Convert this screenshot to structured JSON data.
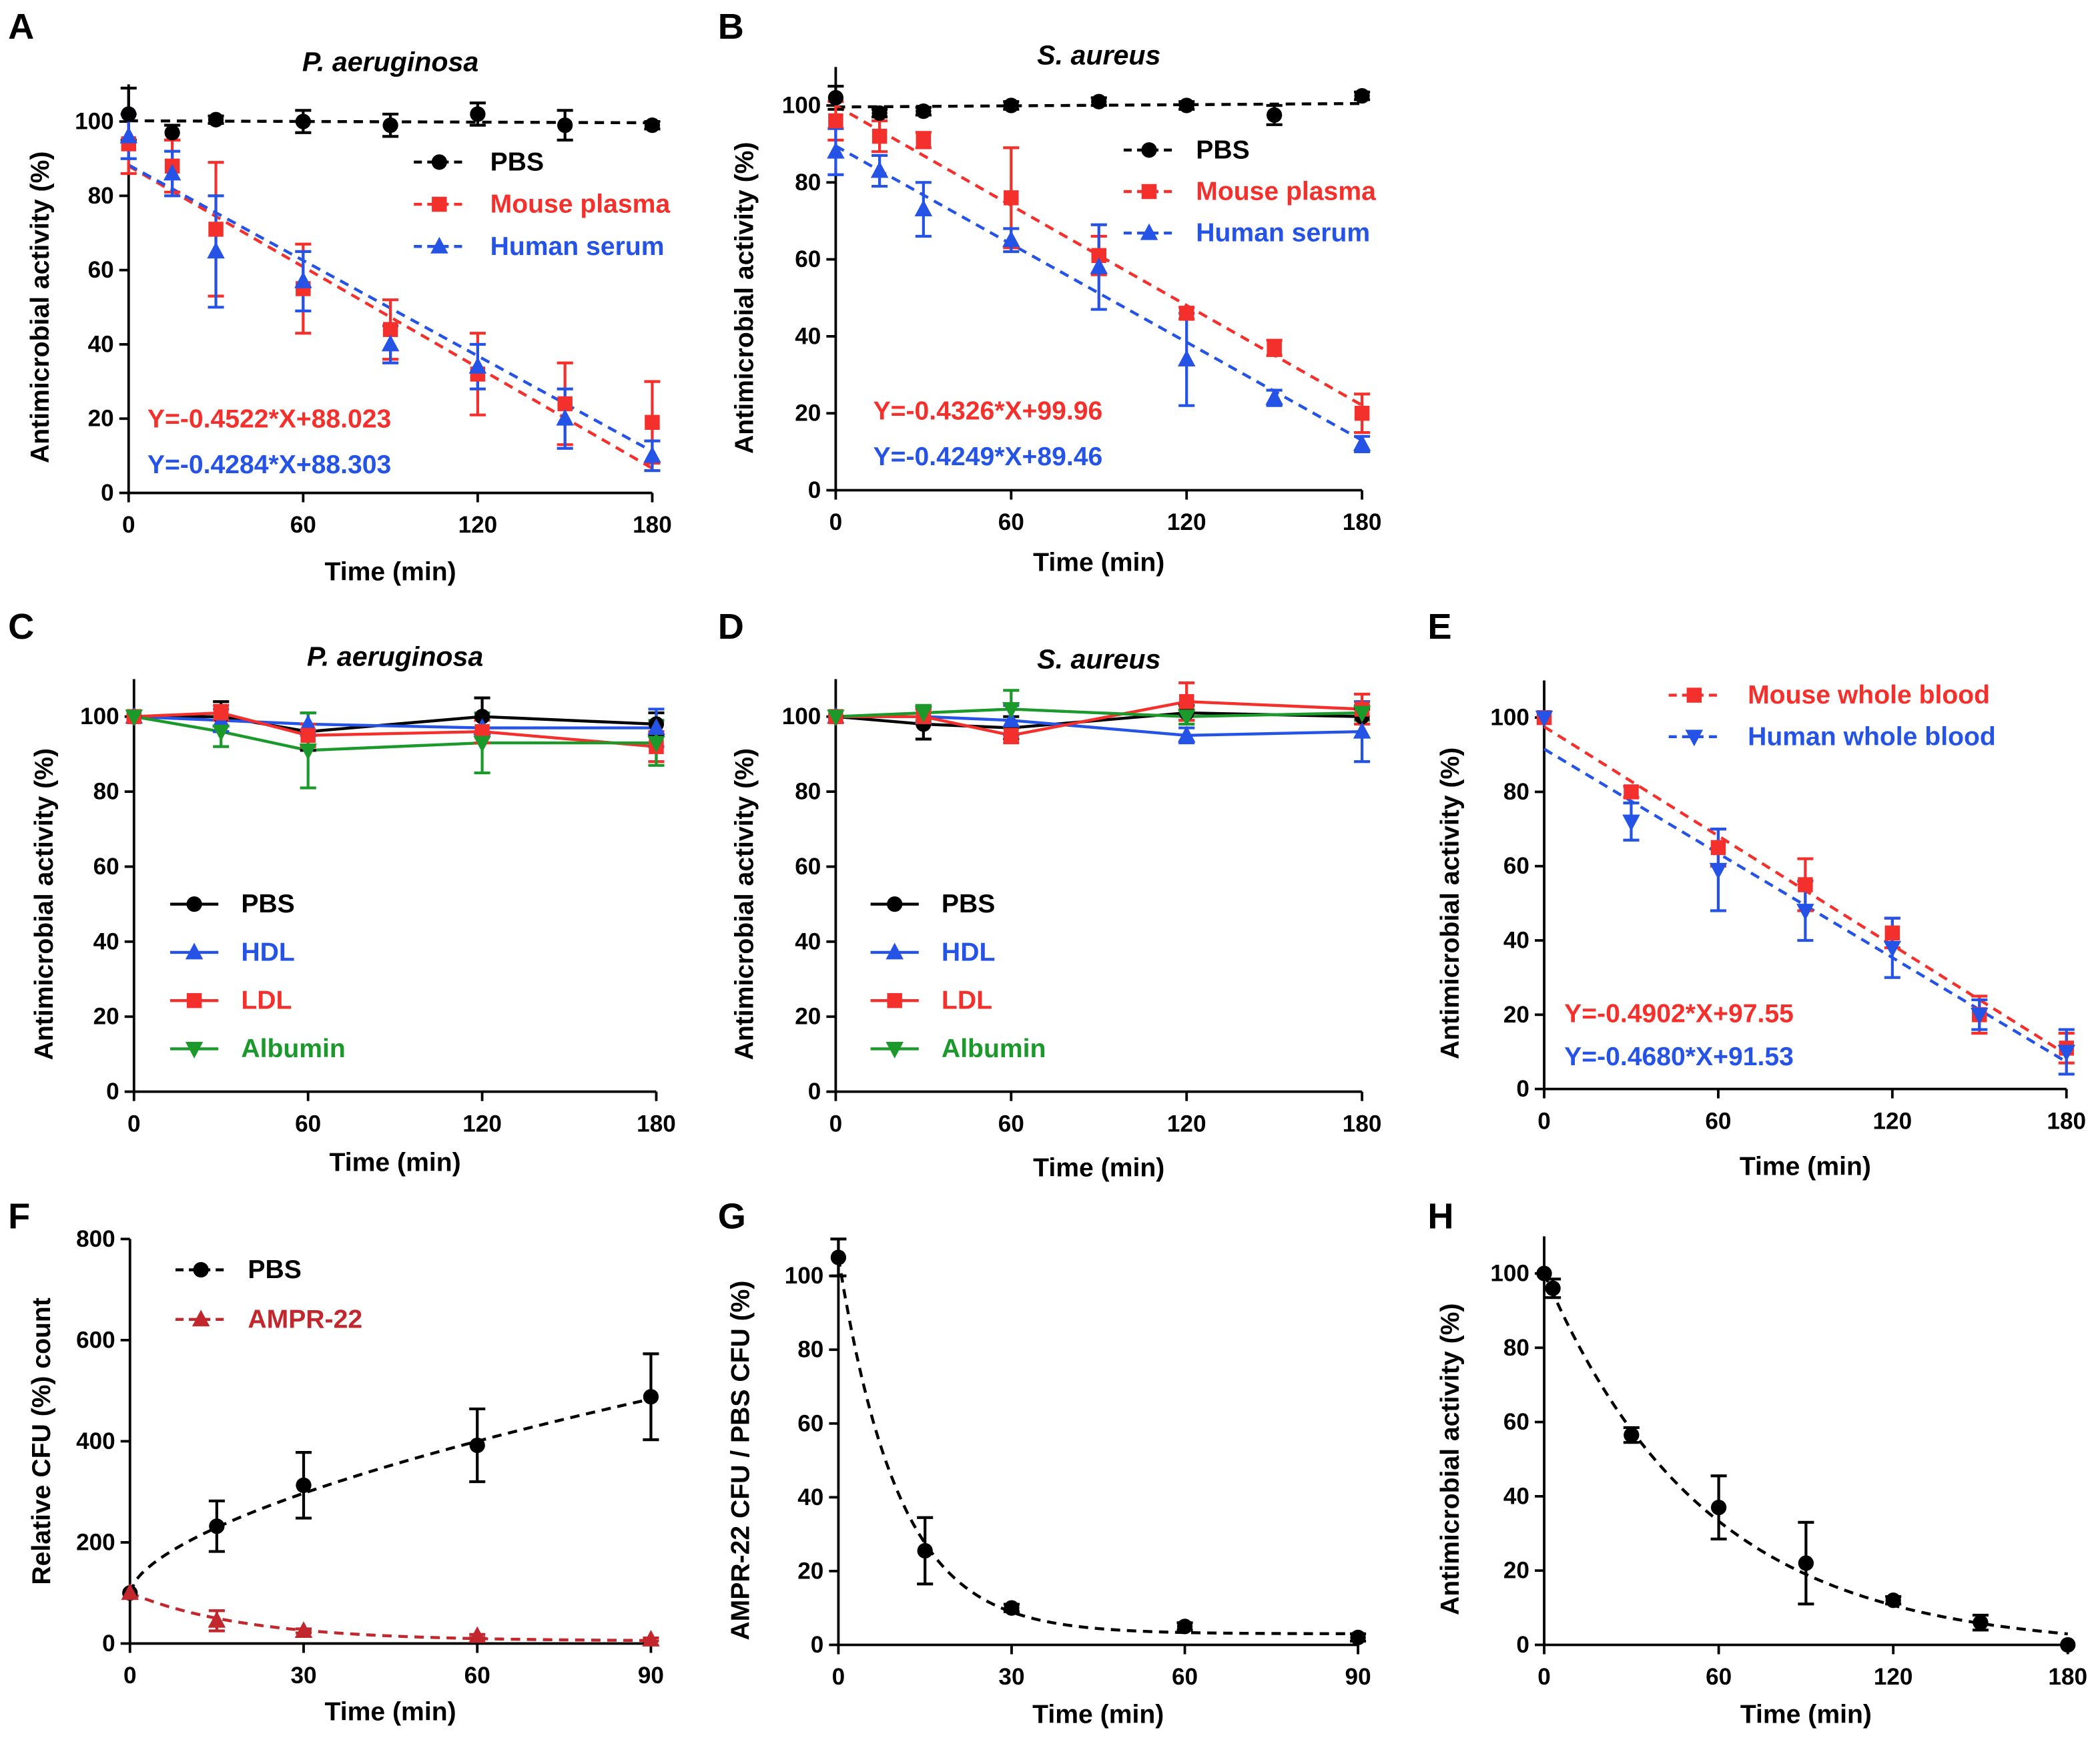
{
  "chart_data": [
    {
      "panel": "A",
      "type": "scatter",
      "title": "P. aeruginosa",
      "xlabel": "Time (min)",
      "ylabel": "Antimicrobial activity (%)",
      "xlim": [
        0,
        180
      ],
      "ylim": [
        0,
        110
      ],
      "xticks": [
        0,
        60,
        120,
        180
      ],
      "yticks": [
        0,
        20,
        40,
        60,
        80,
        100
      ],
      "series": [
        {
          "name": "PBS",
          "color": "#000000",
          "marker": "circle",
          "dashed": true,
          "x": [
            0,
            15,
            30,
            60,
            90,
            120,
            150,
            180
          ],
          "y": [
            102,
            97,
            100.5,
            100,
            99,
            102,
            99,
            99
          ],
          "err": [
            7,
            2,
            1,
            3,
            3,
            3,
            4,
            1
          ],
          "fit": {
            "c": 100.2,
            "m": -0.003
          }
        },
        {
          "name": "Mouse plasma",
          "color": "#f4302c",
          "marker": "square",
          "dashed": true,
          "x": [
            0,
            15,
            30,
            60,
            90,
            120,
            150,
            180
          ],
          "y": [
            94,
            88,
            71,
            55,
            44,
            32,
            24,
            19
          ],
          "err": [
            8,
            7,
            18,
            12,
            8,
            11,
            11,
            11
          ],
          "fit": {
            "c": 88.023,
            "m": -0.4522
          }
        },
        {
          "name": "Human serum",
          "color": "#2453e6",
          "marker": "triangle",
          "dashed": true,
          "x": [
            0,
            15,
            30,
            60,
            90,
            120,
            150,
            180
          ],
          "y": [
            96,
            86,
            65,
            57,
            40,
            34,
            20,
            10
          ],
          "err": [
            6,
            6,
            15,
            8,
            5,
            6,
            8,
            4
          ],
          "fit": {
            "c": 88.303,
            "m": -0.4284
          }
        }
      ],
      "equations": [
        {
          "text": "Y=-0.4522*X+88.023",
          "color": "#f4302c"
        },
        {
          "text": "Y=-0.4284*X+88.303",
          "color": "#2453e6"
        }
      ]
    },
    {
      "panel": "B",
      "type": "scatter",
      "title": "S. aureus",
      "xlabel": "Time (min)",
      "ylabel": "Antimicrobial activity (%)",
      "xlim": [
        0,
        180
      ],
      "ylim": [
        0,
        110
      ],
      "xticks": [
        0,
        60,
        120,
        180
      ],
      "yticks": [
        0,
        20,
        40,
        60,
        80,
        100
      ],
      "series": [
        {
          "name": "PBS",
          "color": "#000000",
          "marker": "circle",
          "dashed": true,
          "x": [
            0,
            15,
            30,
            60,
            90,
            120,
            150,
            180
          ],
          "y": [
            102,
            98,
            98.5,
            100,
            101,
            100,
            97.5,
            102.5
          ],
          "err": [
            3,
            1,
            1,
            1,
            1,
            1,
            2.5,
            1
          ],
          "fit": {
            "c": 99.6,
            "m": 0.005
          }
        },
        {
          "name": "Mouse plasma",
          "color": "#f4302c",
          "marker": "square",
          "dashed": true,
          "x": [
            0,
            15,
            30,
            60,
            90,
            120,
            150,
            180
          ],
          "y": [
            96,
            92,
            91,
            76,
            61,
            46,
            37,
            20
          ],
          "err": [
            5,
            4,
            2,
            13,
            5,
            1.5,
            2,
            5
          ],
          "fit": {
            "c": 99.96,
            "m": -0.4326
          }
        },
        {
          "name": "Human serum",
          "color": "#2453e6",
          "marker": "triangle",
          "dashed": true,
          "x": [
            0,
            15,
            30,
            60,
            90,
            120,
            150,
            180
          ],
          "y": [
            88,
            83,
            73,
            65,
            58,
            34,
            24,
            12
          ],
          "err": [
            6,
            4,
            7,
            3,
            11,
            12,
            2,
            2
          ],
          "fit": {
            "c": 89.46,
            "m": -0.4249
          }
        }
      ],
      "equations": [
        {
          "text": "Y=-0.4326*X+99.96",
          "color": "#f4302c"
        },
        {
          "text": "Y=-0.4249*X+89.46",
          "color": "#2453e6"
        }
      ]
    },
    {
      "panel": "C",
      "type": "line",
      "title": "P. aeruginosa",
      "xlabel": "Time (min)",
      "ylabel": "Antimicrobial activity (%)",
      "xlim": [
        0,
        180
      ],
      "ylim": [
        0,
        110
      ],
      "xticks": [
        0,
        60,
        120,
        180
      ],
      "yticks": [
        0,
        20,
        40,
        60,
        80,
        100
      ],
      "series": [
        {
          "name": "PBS",
          "color": "#000000",
          "marker": "circle",
          "dashed": false,
          "x": [
            0,
            30,
            60,
            120,
            180
          ],
          "y": [
            100,
            100,
            96,
            100,
            98
          ],
          "err": [
            0,
            4,
            5,
            5,
            3
          ]
        },
        {
          "name": "HDL",
          "color": "#2453e6",
          "marker": "triangle",
          "dashed": false,
          "x": [
            0,
            30,
            60,
            120,
            180
          ],
          "y": [
            100,
            99,
            98,
            97,
            97
          ],
          "err": [
            0,
            3,
            3,
            2,
            5
          ]
        },
        {
          "name": "LDL",
          "color": "#f4302c",
          "marker": "square",
          "dashed": false,
          "x": [
            0,
            30,
            60,
            120,
            180
          ],
          "y": [
            100,
            101,
            95,
            96,
            92
          ],
          "err": [
            0,
            2,
            3,
            3,
            4
          ]
        },
        {
          "name": "Albumin",
          "color": "#1b9a2b",
          "marker": "triangle-down",
          "dashed": false,
          "x": [
            0,
            30,
            60,
            120,
            180
          ],
          "y": [
            100,
            96,
            91,
            93,
            93
          ],
          "err": [
            0,
            4,
            10,
            8,
            6
          ]
        }
      ]
    },
    {
      "panel": "D",
      "type": "line",
      "title": "S. aureus",
      "xlabel": "Time (min)",
      "ylabel": "Antimicrobial activity (%)",
      "xlim": [
        0,
        180
      ],
      "ylim": [
        0,
        110
      ],
      "xticks": [
        0,
        60,
        120,
        180
      ],
      "yticks": [
        0,
        20,
        40,
        60,
        80,
        100
      ],
      "series": [
        {
          "name": "PBS",
          "color": "#000000",
          "marker": "circle",
          "dashed": false,
          "x": [
            0,
            30,
            60,
            120,
            180
          ],
          "y": [
            100,
            98,
            97,
            101,
            100
          ],
          "err": [
            0,
            4,
            3,
            2,
            2
          ]
        },
        {
          "name": "HDL",
          "color": "#2453e6",
          "marker": "triangle",
          "dashed": false,
          "x": [
            0,
            30,
            60,
            120,
            180
          ],
          "y": [
            100,
            100,
            99,
            95,
            96
          ],
          "err": [
            0,
            2,
            4,
            2,
            8
          ]
        },
        {
          "name": "LDL",
          "color": "#f4302c",
          "marker": "square",
          "dashed": false,
          "x": [
            0,
            30,
            60,
            120,
            180
          ],
          "y": [
            100,
            100,
            95,
            104,
            102
          ],
          "err": [
            0,
            2,
            2,
            5,
            4
          ]
        },
        {
          "name": "Albumin",
          "color": "#1b9a2b",
          "marker": "triangle-down",
          "dashed": false,
          "x": [
            0,
            30,
            60,
            120,
            180
          ],
          "y": [
            100,
            101,
            102,
            100,
            101
          ],
          "err": [
            0,
            2,
            5,
            2,
            2
          ]
        }
      ]
    },
    {
      "panel": "E",
      "type": "scatter",
      "xlabel": "Time (min)",
      "ylabel": "Antimicrobial activity (%)",
      "xlim": [
        0,
        180
      ],
      "ylim": [
        0,
        110
      ],
      "xticks": [
        0,
        60,
        120,
        180
      ],
      "yticks": [
        0,
        20,
        40,
        60,
        80,
        100
      ],
      "series": [
        {
          "name": "Mouse whole blood",
          "color": "#f4302c",
          "marker": "square",
          "dashed": true,
          "x": [
            0,
            30,
            60,
            90,
            120,
            150,
            180
          ],
          "y": [
            100,
            80,
            65,
            55,
            42,
            20,
            11
          ],
          "err": [
            0,
            1.5,
            5,
            7,
            4,
            5,
            4
          ],
          "fit": {
            "c": 97.55,
            "m": -0.4902
          }
        },
        {
          "name": "Human whole blood",
          "color": "#2453e6",
          "marker": "triangle-down",
          "dashed": true,
          "x": [
            0,
            30,
            60,
            90,
            120,
            150,
            180
          ],
          "y": [
            100,
            72,
            59,
            48,
            38,
            20,
            10
          ],
          "err": [
            0,
            5,
            11,
            8,
            8,
            4,
            6
          ],
          "fit": {
            "c": 91.53,
            "m": -0.468
          }
        }
      ],
      "equations": [
        {
          "text": "Y=-0.4902*X+97.55",
          "color": "#f4302c"
        },
        {
          "text": "Y=-0.4680*X+91.53",
          "color": "#2453e6"
        }
      ]
    },
    {
      "panel": "F",
      "type": "scatter",
      "xlabel": "Time (min)",
      "ylabel": "Relative CFU (%) count",
      "xlim": [
        0,
        90
      ],
      "ylim": [
        0,
        800
      ],
      "xticks": [
        0,
        30,
        60,
        90
      ],
      "yticks": [
        0,
        200,
        400,
        600,
        800
      ],
      "series": [
        {
          "name": "PBS",
          "color": "#000000",
          "marker": "circle",
          "dashed": true,
          "x": [
            0,
            15,
            30,
            60,
            90
          ],
          "y": [
            100,
            232,
            313,
            392,
            488
          ],
          "err": [
            0,
            50,
            65,
            72,
            85
          ],
          "fit": {
            "c": 100,
            "a": 25.1,
            "b": 0.606
          }
        },
        {
          "name": "AMPR-22",
          "color": "#c2272d",
          "marker": "triangle",
          "dashed": true,
          "x": [
            0,
            15,
            30,
            60,
            90
          ],
          "y": [
            100,
            45,
            25,
            15,
            8
          ],
          "err": [
            0,
            20,
            4,
            3,
            3
          ],
          "fit": {
            "c": 5,
            "d": 95,
            "k": 0.05
          }
        }
      ]
    },
    {
      "panel": "G",
      "type": "scatter",
      "xlabel": "Time (min)",
      "ylabel": "AMPR-22 CFU / PBS CFU (%)",
      "xlim": [
        0,
        90
      ],
      "ylim": [
        0,
        110
      ],
      "xticks": [
        0,
        30,
        60,
        90
      ],
      "yticks": [
        0,
        20,
        40,
        60,
        80,
        100
      ],
      "series": [
        {
          "color": "#000000",
          "marker": "circle",
          "dashed": true,
          "x": [
            0,
            15,
            30,
            60,
            90
          ],
          "y": [
            105,
            25.5,
            10,
            5,
            2
          ],
          "err": [
            5,
            9,
            1,
            1,
            1
          ],
          "fit": {
            "c": 3,
            "d": 102,
            "k": 0.095
          }
        }
      ]
    },
    {
      "panel": "H",
      "type": "scatter",
      "xlabel": "Time (min)",
      "ylabel": "Antimicrobial activity (%)",
      "xlim": [
        0,
        180
      ],
      "ylim": [
        0,
        110
      ],
      "xticks": [
        0,
        60,
        120,
        180
      ],
      "yticks": [
        0,
        20,
        40,
        60,
        80,
        100
      ],
      "series": [
        {
          "color": "#000000",
          "marker": "circle",
          "dashed": true,
          "x": [
            0,
            3,
            30,
            60,
            90,
            120,
            150,
            180
          ],
          "y": [
            100,
            96,
            56.5,
            37,
            22,
            12,
            6,
            0
          ],
          "err": [
            0,
            2.5,
            2,
            8.5,
            11,
            1,
            2,
            0
          ],
          "fit": {
            "c": -1,
            "d": 101,
            "k": 0.018
          }
        }
      ]
    }
  ]
}
